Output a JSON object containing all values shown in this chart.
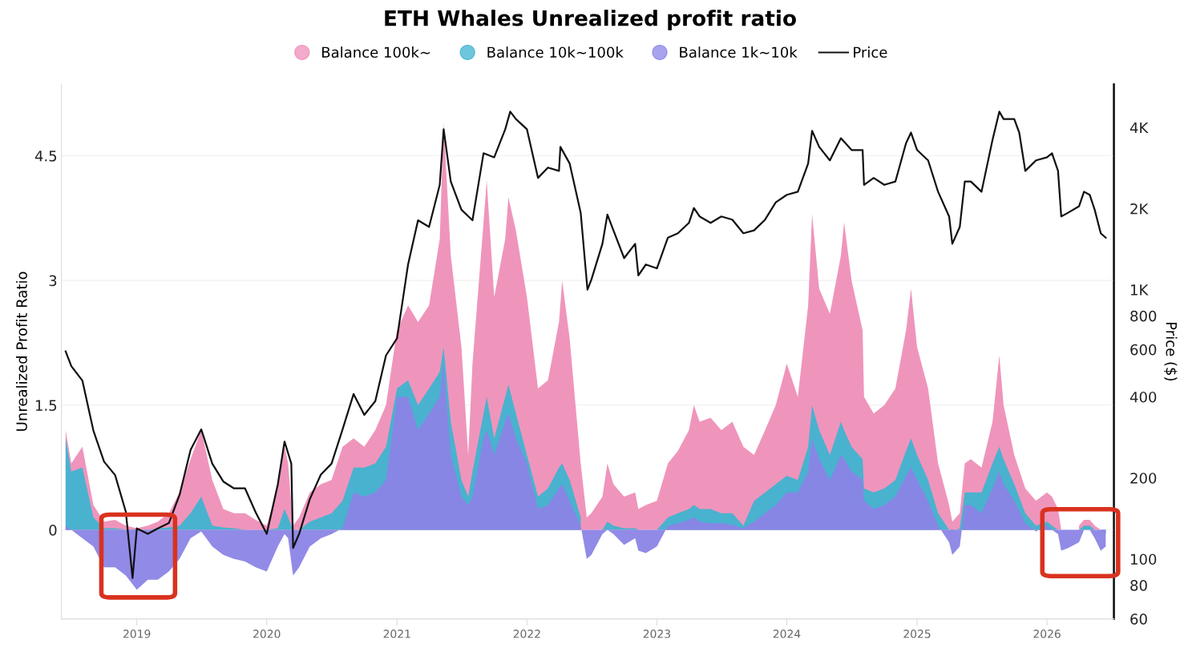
{
  "chart_data": {
    "type": "area",
    "title": "ETH Whales Unrealized profit ratio",
    "ylabel": "Unrealized Profit Ratio",
    "y2label": "Price ($)",
    "x": [
      "2018-06-15",
      "2018-07-01",
      "2018-08-01",
      "2018-09-01",
      "2018-10-01",
      "2018-11-01",
      "2018-12-01",
      "2019-01-01",
      "2019-02-01",
      "2019-03-01",
      "2019-04-01",
      "2019-05-01",
      "2019-06-01",
      "2019-07-01",
      "2019-08-01",
      "2019-09-01",
      "2019-10-01",
      "2019-11-01",
      "2019-12-01",
      "2020-01-01",
      "2020-02-01",
      "2020-02-20",
      "2020-03-01",
      "2020-03-15",
      "2020-04-01",
      "2020-05-01",
      "2020-06-01",
      "2020-07-01",
      "2020-08-01",
      "2020-09-01",
      "2020-10-01",
      "2020-11-01",
      "2020-12-01",
      "2021-01-01",
      "2021-02-01",
      "2021-03-01",
      "2021-04-01",
      "2021-05-01",
      "2021-05-12",
      "2021-06-01",
      "2021-07-01",
      "2021-07-20",
      "2021-08-01",
      "2021-09-01",
      "2021-09-10",
      "2021-10-01",
      "2021-11-01",
      "2021-11-10",
      "2021-12-01",
      "2022-01-01",
      "2022-02-01",
      "2022-03-01",
      "2022-04-01",
      "2022-04-10",
      "2022-05-01",
      "2022-06-01",
      "2022-06-18",
      "2022-07-01",
      "2022-08-01",
      "2022-08-15",
      "2022-09-01",
      "2022-10-01",
      "2022-11-01",
      "2022-11-10",
      "2022-12-01",
      "2023-01-01",
      "2023-02-01",
      "2023-03-01",
      "2023-04-01",
      "2023-04-15",
      "2023-05-01",
      "2023-06-01",
      "2023-07-01",
      "2023-08-01",
      "2023-09-01",
      "2023-10-01",
      "2023-11-01",
      "2023-12-01",
      "2024-01-01",
      "2024-02-01",
      "2024-03-01",
      "2024-03-12",
      "2024-04-01",
      "2024-05-01",
      "2024-06-01",
      "2024-06-10",
      "2024-07-01",
      "2024-08-01",
      "2024-08-05",
      "2024-09-01",
      "2024-10-01",
      "2024-11-01",
      "2024-12-01",
      "2024-12-15",
      "2025-01-01",
      "2025-02-01",
      "2025-03-01",
      "2025-04-01",
      "2025-04-10",
      "2025-05-01",
      "2025-05-15",
      "2025-06-01",
      "2025-07-01",
      "2025-08-01",
      "2025-08-20",
      "2025-09-01",
      "2025-10-01",
      "2025-11-01",
      "2025-12-01",
      "2026-01-01",
      "2026-01-15",
      "2026-02-01",
      "2026-02-10",
      "2026-03-01",
      "2026-04-01",
      "2026-04-15",
      "2026-05-01",
      "2026-05-15",
      "2026-06-01",
      "2026-06-15"
    ],
    "series": [
      {
        "name": "Balance 100k~",
        "color": "#ee8fb8",
        "values": [
          1.2,
          0.8,
          1.0,
          0.3,
          0.1,
          0.12,
          0.05,
          0.02,
          0.05,
          0.1,
          0.2,
          0.45,
          0.85,
          1.2,
          0.6,
          0.25,
          0.2,
          0.2,
          0.12,
          0.05,
          0.5,
          1.0,
          0.8,
          0.05,
          0.15,
          0.45,
          0.55,
          0.6,
          1.0,
          1.1,
          1.0,
          1.2,
          1.5,
          2.4,
          2.7,
          2.5,
          2.7,
          3.5,
          4.9,
          3.3,
          2.2,
          0.9,
          2.0,
          3.7,
          4.2,
          2.8,
          3.5,
          4.0,
          3.6,
          2.8,
          1.7,
          1.8,
          2.5,
          3.0,
          2.3,
          0.8,
          0.15,
          0.2,
          0.4,
          0.8,
          0.55,
          0.4,
          0.45,
          0.25,
          0.3,
          0.35,
          0.8,
          0.95,
          1.2,
          1.5,
          1.3,
          1.35,
          1.2,
          1.3,
          1.0,
          0.9,
          1.2,
          1.5,
          2.0,
          1.6,
          2.7,
          3.8,
          2.9,
          2.6,
          3.3,
          3.7,
          3.0,
          2.4,
          1.6,
          1.4,
          1.5,
          1.7,
          2.4,
          2.9,
          2.2,
          1.7,
          0.8,
          0.3,
          0.1,
          0.2,
          0.8,
          0.85,
          0.75,
          1.3,
          2.1,
          1.5,
          0.9,
          0.5,
          0.35,
          0.45,
          0.4,
          0.25,
          0.0,
          null,
          0.05,
          0.12,
          0.12,
          0.05,
          0.0,
          -0.05
        ]
      },
      {
        "name": "Balance 10k~100k",
        "color": "#3fb3d0",
        "values": [
          1.1,
          0.7,
          0.75,
          0.15,
          0.02,
          0.02,
          0.0,
          -0.02,
          0.0,
          0.02,
          0.03,
          0.05,
          0.2,
          0.4,
          0.05,
          0.03,
          0.02,
          0.0,
          0.0,
          0.0,
          0.02,
          0.25,
          0.15,
          0.0,
          0.0,
          0.1,
          0.15,
          0.2,
          0.35,
          0.75,
          0.75,
          0.8,
          1.0,
          1.7,
          1.8,
          1.5,
          1.7,
          1.9,
          2.2,
          1.3,
          0.6,
          0.4,
          0.7,
          1.4,
          1.6,
          1.1,
          1.6,
          1.75,
          1.4,
          0.9,
          0.4,
          0.5,
          0.75,
          0.8,
          0.6,
          0.15,
          null,
          0.0,
          0.0,
          0.1,
          0.05,
          0.02,
          0.02,
          0.0,
          0.0,
          0.0,
          0.15,
          0.2,
          0.25,
          0.3,
          0.25,
          0.25,
          0.2,
          0.2,
          0.05,
          0.35,
          0.45,
          0.55,
          0.65,
          0.6,
          1.0,
          1.5,
          1.2,
          0.9,
          1.3,
          1.2,
          1.0,
          0.85,
          0.5,
          0.45,
          0.5,
          0.6,
          0.95,
          1.1,
          0.9,
          0.6,
          0.2,
          0.0,
          -0.02,
          0.02,
          0.45,
          0.45,
          0.45,
          0.8,
          1.0,
          0.85,
          0.55,
          0.2,
          0.05,
          0.1,
          0.05,
          0.0,
          0.0,
          null,
          0.0,
          0.05,
          0.05,
          0.0,
          0.0,
          -0.05
        ]
      },
      {
        "name": "Balance 1k~10k",
        "color": "#8b84e6",
        "values": [
          0.05,
          0.0,
          -0.1,
          -0.2,
          -0.45,
          -0.45,
          -0.55,
          -0.72,
          -0.6,
          -0.6,
          -0.5,
          -0.35,
          -0.1,
          -0.02,
          -0.2,
          -0.3,
          -0.35,
          -0.38,
          -0.45,
          -0.5,
          -0.2,
          -0.05,
          -0.1,
          -0.55,
          -0.45,
          -0.2,
          -0.1,
          -0.05,
          0.02,
          0.45,
          0.4,
          0.45,
          0.6,
          1.6,
          1.6,
          1.2,
          1.4,
          1.6,
          2.0,
          0.9,
          0.4,
          0.3,
          0.4,
          1.1,
          1.2,
          0.9,
          1.3,
          1.4,
          1.1,
          0.8,
          0.25,
          0.3,
          0.5,
          0.55,
          0.35,
          0.05,
          -0.35,
          -0.3,
          -0.05,
          0.0,
          -0.05,
          -0.18,
          -0.1,
          -0.25,
          -0.28,
          -0.2,
          0.05,
          0.08,
          0.12,
          0.15,
          0.1,
          0.08,
          0.08,
          0.06,
          0.02,
          0.1,
          0.2,
          0.3,
          0.45,
          0.45,
          0.7,
          1.1,
          0.85,
          0.6,
          0.9,
          0.85,
          0.7,
          0.6,
          0.35,
          0.25,
          0.3,
          0.4,
          0.65,
          0.75,
          0.6,
          0.35,
          0.05,
          -0.15,
          -0.3,
          -0.2,
          0.3,
          0.3,
          0.2,
          0.5,
          0.7,
          0.55,
          0.35,
          0.08,
          -0.02,
          0.05,
          0.0,
          -0.05,
          -0.25,
          -0.22,
          -0.15,
          0.0,
          0.0,
          -0.1,
          -0.25,
          -0.2
        ]
      },
      {
        "name": "Price",
        "type": "line",
        "axis": "y2",
        "color": "#111111",
        "x": [
          "2018-06-15",
          "2018-07-01",
          "2018-08-01",
          "2018-09-01",
          "2018-10-01",
          "2018-11-01",
          "2018-12-01",
          "2018-12-20",
          "2019-01-01",
          "2019-02-01",
          "2019-03-01",
          "2019-04-01",
          "2019-05-01",
          "2019-06-01",
          "2019-07-01",
          "2019-08-01",
          "2019-09-01",
          "2019-10-01",
          "2019-11-01",
          "2019-12-01",
          "2020-01-01",
          "2020-02-01",
          "2020-02-20",
          "2020-03-10",
          "2020-03-15",
          "2020-04-01",
          "2020-05-01",
          "2020-06-01",
          "2020-07-01",
          "2020-08-01",
          "2020-09-01",
          "2020-10-01",
          "2020-11-01",
          "2020-12-01",
          "2021-01-01",
          "2021-02-01",
          "2021-03-01",
          "2021-04-01",
          "2021-05-01",
          "2021-05-12",
          "2021-06-01",
          "2021-07-01",
          "2021-08-01",
          "2021-09-01",
          "2021-10-01",
          "2021-11-01",
          "2021-11-15",
          "2021-12-01",
          "2022-01-01",
          "2022-02-01",
          "2022-03-01",
          "2022-04-01",
          "2022-04-05",
          "2022-05-01",
          "2022-06-01",
          "2022-06-20",
          "2022-07-01",
          "2022-08-01",
          "2022-08-15",
          "2022-09-01",
          "2022-10-01",
          "2022-11-01",
          "2022-11-10",
          "2022-12-01",
          "2023-01-01",
          "2023-02-01",
          "2023-03-01",
          "2023-04-01",
          "2023-04-15",
          "2023-05-01",
          "2023-06-01",
          "2023-07-01",
          "2023-08-01",
          "2023-09-01",
          "2023-10-01",
          "2023-11-01",
          "2023-12-01",
          "2024-01-01",
          "2024-02-01",
          "2024-03-01",
          "2024-03-12",
          "2024-04-01",
          "2024-05-01",
          "2024-06-01",
          "2024-07-01",
          "2024-08-01",
          "2024-08-05",
          "2024-09-01",
          "2024-10-01",
          "2024-11-01",
          "2024-12-01",
          "2024-12-15",
          "2025-01-01",
          "2025-02-01",
          "2025-03-01",
          "2025-04-01",
          "2025-04-10",
          "2025-05-01",
          "2025-05-15",
          "2025-06-01",
          "2025-07-01",
          "2025-08-01",
          "2025-08-20",
          "2025-09-01",
          "2025-10-01",
          "2025-10-15",
          "2025-11-01",
          "2025-12-01",
          "2026-01-01",
          "2026-01-15",
          "2026-02-01",
          "2026-02-10",
          "2026-03-01",
          "2026-04-01",
          "2026-04-15",
          "2026-05-01",
          "2026-05-15",
          "2026-06-01",
          "2026-06-15"
        ],
        "values": [
          590,
          520,
          460,
          300,
          230,
          205,
          150,
          85,
          130,
          124,
          130,
          136,
          173,
          254,
          303,
          226,
          194,
          183,
          183,
          149,
          124,
          189,
          273,
          226,
          110,
          124,
          167,
          206,
          226,
          303,
          410,
          343,
          386,
          570,
          660,
          1240,
          1810,
          1710,
          2450,
          3940,
          2520,
          1980,
          1810,
          3210,
          3100,
          3940,
          4580,
          4300,
          3940,
          2600,
          2840,
          2760,
          3390,
          2940,
          1930,
          1000,
          1090,
          1480,
          1900,
          1660,
          1310,
          1480,
          1130,
          1240,
          1200,
          1560,
          1620,
          1770,
          2010,
          1870,
          1770,
          1870,
          1820,
          1620,
          1660,
          1820,
          2110,
          2250,
          2310,
          2940,
          3890,
          3390,
          3020,
          3650,
          3300,
          3300,
          2450,
          2600,
          2450,
          2520,
          3500,
          3830,
          3300,
          3020,
          2310,
          1870,
          1480,
          1710,
          2520,
          2520,
          2310,
          3600,
          4580,
          4300,
          4300,
          3830,
          2760,
          3020,
          3100,
          3210,
          2760,
          1870,
          1930,
          2040,
          2310,
          2250,
          1980,
          1620,
          1560
        ]
      }
    ],
    "xlim": [
      "2018-06-03",
      "2026-07-08"
    ],
    "xticks": [
      "2019",
      "2020",
      "2021",
      "2022",
      "2023",
      "2024",
      "2025",
      "2026"
    ],
    "ylim": [
      -1.07,
      5.36
    ],
    "yticks": [
      0,
      1.5,
      3,
      4.5
    ],
    "y2lim": [
      60,
      5790
    ],
    "y2ticks": [
      60,
      80,
      100,
      200,
      400,
      600,
      800,
      {
        "value": 1000,
        "label": "1K"
      },
      {
        "value": 2000,
        "label": "2K"
      },
      {
        "value": 4000,
        "label": "4K"
      }
    ],
    "log": "y2",
    "grid": "y",
    "legend": "top"
  }
}
